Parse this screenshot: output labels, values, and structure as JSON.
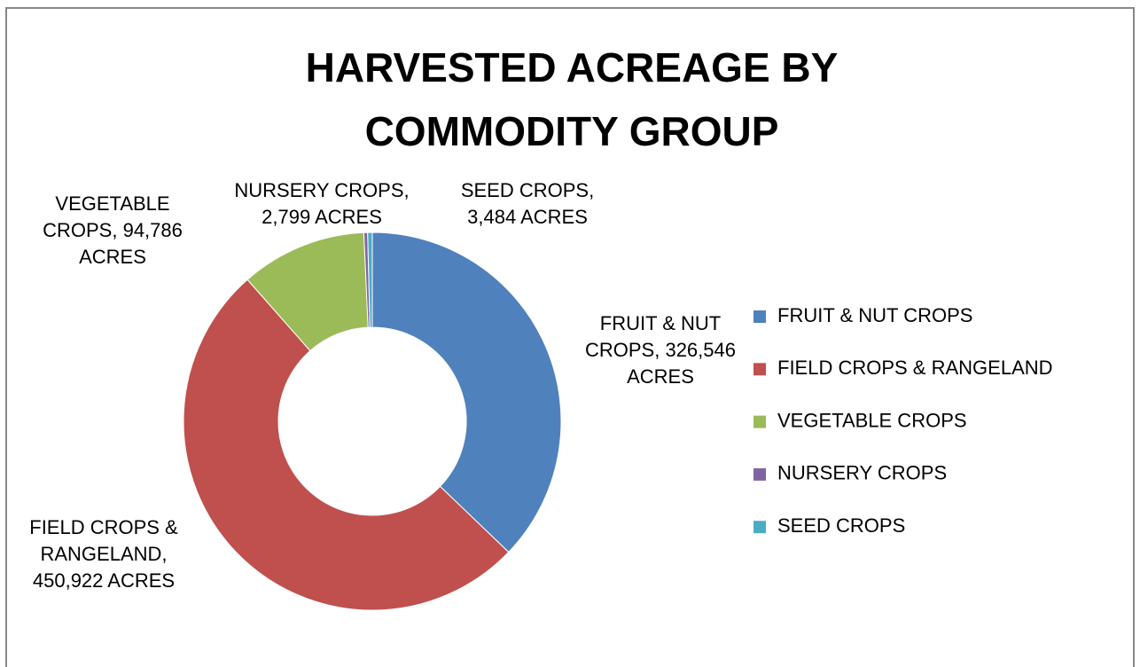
{
  "chart_data": {
    "type": "donut",
    "title": "HARVESTED ACREAGE BY COMMODITY GROUP",
    "categories": [
      "FRUIT & NUT CROPS",
      "FIELD CROPS & RANGELAND",
      "VEGETABLE CROPS",
      "NURSERY CROPS",
      "SEED CROPS"
    ],
    "values": [
      326546,
      450922,
      94786,
      2799,
      3484
    ],
    "value_labels": [
      "FRUIT & NUT CROPS, 326,546 ACRES",
      "FIELD CROPS & RANGELAND, 450,922 ACRES",
      "VEGETABLE CROPS, 94,786 ACRES",
      "NURSERY CROPS, 2,799 ACRES",
      "SEED CROPS, 3,484 ACRES"
    ],
    "colors": [
      "#4f81bd",
      "#c0504d",
      "#9bbb59",
      "#8064a2",
      "#4bacc6"
    ],
    "legend": "right"
  }
}
